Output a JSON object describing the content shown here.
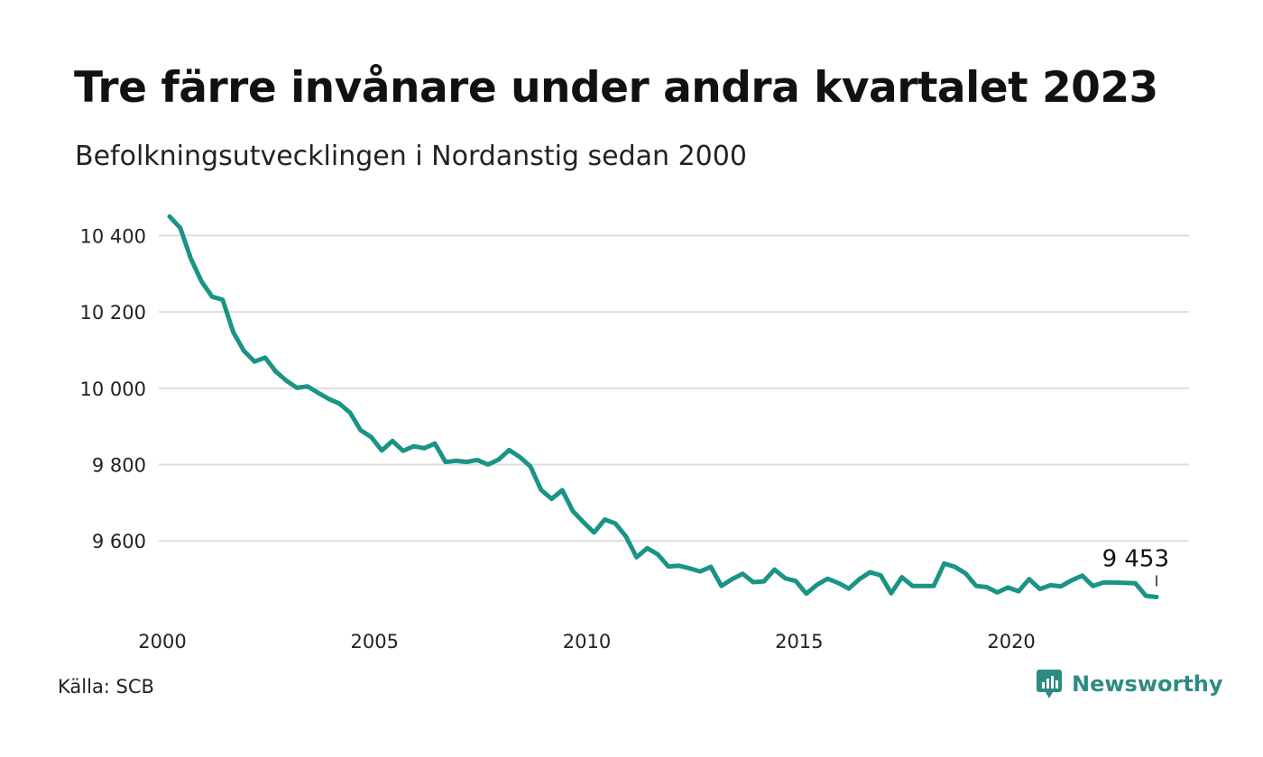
{
  "title": "Tre färre invånare under andra kvartalet 2023",
  "subtitle": "Befolkningsutvecklingen i Nordanstig sedan 2000",
  "source": "Källa: SCB",
  "brand": "Newsworthy",
  "colors": {
    "line": "#1a9484",
    "grid": "#dddddd",
    "brand": "#2e8b83"
  },
  "chart_data": {
    "type": "line",
    "title": "Tre färre invånare under andra kvartalet 2023",
    "subtitle": "Befolkningsutvecklingen i Nordanstig sedan 2000",
    "xlabel": "",
    "ylabel": "",
    "x_ticks": [
      2000,
      2005,
      2010,
      2015,
      2020
    ],
    "x_tick_labels": [
      "2000",
      "2005",
      "2010",
      "2015",
      "2020"
    ],
    "y_ticks": [
      9600,
      9800,
      10000,
      10200,
      10400
    ],
    "y_tick_labels": [
      "9 600",
      "9 800",
      "10 000",
      "10 200",
      "10 400"
    ],
    "xlim": [
      2000,
      2023.25
    ],
    "ylim": [
      9440,
      10460
    ],
    "grid": "horizontal",
    "end_label": "9 453",
    "series": [
      {
        "x": [
          2000.0,
          2000.25,
          2000.5,
          2000.75,
          2001.0,
          2001.25,
          2001.5,
          2001.75,
          2002.0,
          2002.25,
          2002.5,
          2002.75,
          2003.0,
          2003.25,
          2003.5,
          2003.75,
          2004.0,
          2004.25,
          2004.5,
          2004.75,
          2005.0,
          2005.25,
          2005.5,
          2005.75,
          2006.0,
          2006.25,
          2006.5,
          2006.75,
          2007.0,
          2007.25,
          2007.5,
          2007.75,
          2008.0,
          2008.25,
          2008.5,
          2008.75,
          2009.0,
          2009.25,
          2009.5,
          2009.75,
          2010.0,
          2010.25,
          2010.5,
          2010.75,
          2011.0,
          2011.25,
          2011.5,
          2011.75,
          2012.0,
          2012.25,
          2012.5,
          2012.75,
          2013.0,
          2013.25,
          2013.5,
          2013.75,
          2014.0,
          2014.25,
          2014.5,
          2014.75,
          2015.0,
          2015.25,
          2015.5,
          2015.75,
          2016.0,
          2016.25,
          2016.5,
          2016.75,
          2017.0,
          2017.25,
          2017.5,
          2017.75,
          2018.0,
          2018.25,
          2018.5,
          2018.75,
          2019.0,
          2019.25,
          2019.5,
          2019.75,
          2020.0,
          2020.25,
          2020.5,
          2020.75,
          2021.0,
          2021.25,
          2021.5,
          2021.75,
          2022.0,
          2022.25,
          2022.5,
          2022.75,
          2023.0,
          2023.25
        ],
        "values": [
          10450,
          10420,
          10340,
          10280,
          10240,
          10232,
          10147,
          10098,
          10070,
          10080,
          10044,
          10020,
          10001,
          10005,
          9988,
          9972,
          9960,
          9936,
          9890,
          9872,
          9837,
          9862,
          9836,
          9848,
          9843,
          9855,
          9807,
          9810,
          9807,
          9812,
          9800,
          9813,
          9838,
          9820,
          9795,
          9734,
          9710,
          9733,
          9678,
          9649,
          9622,
          9656,
          9646,
          9612,
          9557,
          9581,
          9565,
          9533,
          9535,
          9528,
          9520,
          9532,
          9482,
          9500,
          9514,
          9492,
          9494,
          9525,
          9502,
          9495,
          9462,
          9485,
          9501,
          9490,
          9475,
          9500,
          9518,
          9510,
          9463,
          9505,
          9482,
          9482,
          9482,
          9541,
          9532,
          9515,
          9482,
          9479,
          9465,
          9478,
          9468,
          9500,
          9474,
          9484,
          9481,
          9497,
          9509,
          9482,
          9491,
          9491,
          9490,
          9489,
          9456,
          9453
        ]
      }
    ]
  }
}
